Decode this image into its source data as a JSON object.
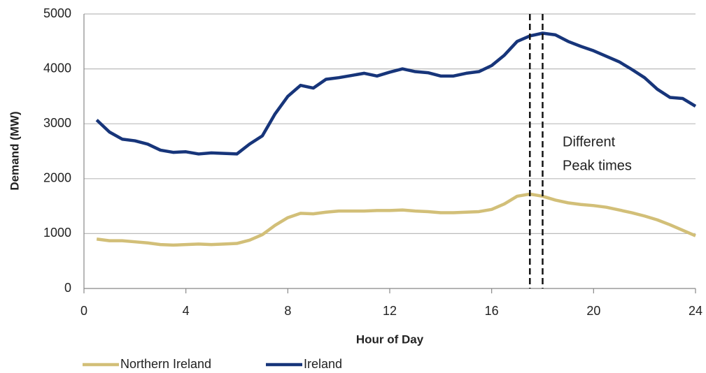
{
  "chart_data": {
    "type": "line",
    "x_label": "Hour of Day",
    "y_label": "Demand (MW)",
    "x": [
      0.5,
      1,
      1.5,
      2,
      2.5,
      3,
      3.5,
      4,
      4.5,
      5,
      5.5,
      6,
      6.5,
      7,
      7.5,
      8,
      8.5,
      9,
      9.5,
      10,
      10.5,
      11,
      11.5,
      12,
      12.5,
      13,
      13.5,
      14,
      14.5,
      15,
      15.5,
      16,
      16.5,
      17,
      17.5,
      18,
      18.5,
      19,
      19.5,
      20,
      20.5,
      21,
      21.5,
      22,
      22.5,
      23,
      23.5,
      24
    ],
    "series": [
      {
        "name": "Northern Ireland",
        "color": "#d2bf78",
        "values": [
          900,
          870,
          870,
          850,
          830,
          800,
          790,
          800,
          810,
          800,
          810,
          820,
          880,
          980,
          1150,
          1290,
          1370,
          1360,
          1390,
          1410,
          1410,
          1410,
          1420,
          1420,
          1430,
          1410,
          1400,
          1380,
          1380,
          1390,
          1400,
          1440,
          1540,
          1680,
          1720,
          1680,
          1610,
          1560,
          1530,
          1510,
          1480,
          1430,
          1380,
          1320,
          1250,
          1160,
          1060,
          960
        ]
      },
      {
        "name": "Ireland",
        "color": "#17357a",
        "values": [
          3070,
          2850,
          2720,
          2690,
          2630,
          2520,
          2480,
          2490,
          2450,
          2470,
          2460,
          2450,
          2630,
          2780,
          3180,
          3500,
          3700,
          3650,
          3810,
          3840,
          3880,
          3920,
          3870,
          3940,
          4000,
          3950,
          3930,
          3870,
          3870,
          3920,
          3950,
          4060,
          4250,
          4500,
          4600,
          4650,
          4620,
          4500,
          4410,
          4330,
          4230,
          4130,
          3990,
          3840,
          3630,
          3480,
          3460,
          3320
        ]
      }
    ],
    "xlim": [
      0,
      24
    ],
    "xticks": [
      0,
      4,
      8,
      12,
      16,
      20,
      24
    ],
    "ylim": [
      0,
      5000
    ],
    "yticks": [
      0,
      1000,
      2000,
      3000,
      4000,
      5000
    ],
    "grid": true,
    "legend": "bottom",
    "peak_lines": [
      17.5,
      18
    ],
    "annotation": [
      "Different",
      "Peak times"
    ]
  }
}
